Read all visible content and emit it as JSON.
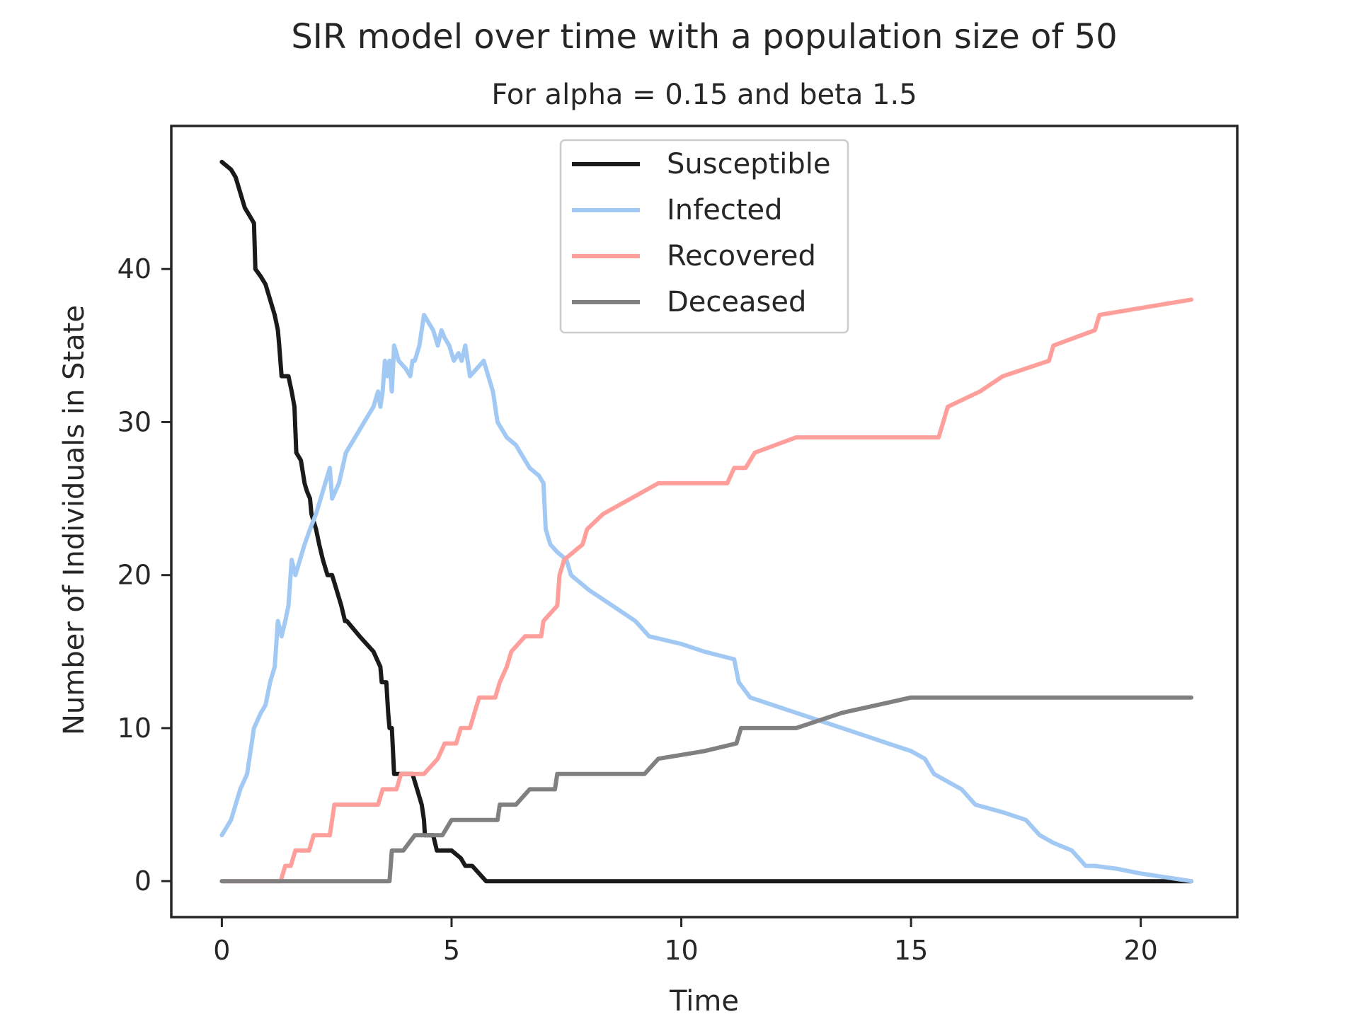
{
  "chart_data": {
    "type": "line",
    "title": "SIR model over time with a population size of 50",
    "subtitle": "For alpha = 0.15 and beta 1.5",
    "xlabel": "Time",
    "ylabel": "Number of Individuals in State",
    "xlim": [
      -1.1,
      22.1
    ],
    "ylim": [
      -2.35,
      49.35
    ],
    "xticks": [
      0,
      5,
      10,
      15,
      20
    ],
    "yticks": [
      0,
      10,
      20,
      30,
      40
    ],
    "grid": false,
    "legend_position": "upper center",
    "series": [
      {
        "name": "Susceptible",
        "color": "#1a1a1a",
        "points": [
          [
            0,
            47
          ],
          [
            0.2,
            46.5
          ],
          [
            0.3,
            46
          ],
          [
            0.4,
            45
          ],
          [
            0.5,
            44
          ],
          [
            0.6,
            43.5
          ],
          [
            0.7,
            43
          ],
          [
            0.73,
            40
          ],
          [
            0.85,
            39.5
          ],
          [
            0.95,
            39
          ],
          [
            1.05,
            38
          ],
          [
            1.15,
            37
          ],
          [
            1.22,
            36
          ],
          [
            1.25,
            35
          ],
          [
            1.3,
            33
          ],
          [
            1.45,
            33
          ],
          [
            1.52,
            32
          ],
          [
            1.58,
            31
          ],
          [
            1.62,
            28
          ],
          [
            1.72,
            27.5
          ],
          [
            1.8,
            26
          ],
          [
            1.85,
            25.5
          ],
          [
            1.92,
            25
          ],
          [
            1.95,
            24
          ],
          [
            2.05,
            23
          ],
          [
            2.12,
            22
          ],
          [
            2.2,
            21
          ],
          [
            2.3,
            20
          ],
          [
            2.4,
            20
          ],
          [
            2.5,
            19
          ],
          [
            2.6,
            18
          ],
          [
            2.68,
            17
          ],
          [
            2.72,
            17
          ],
          [
            3.0,
            16
          ],
          [
            3.3,
            15
          ],
          [
            3.45,
            14
          ],
          [
            3.48,
            13
          ],
          [
            3.58,
            13
          ],
          [
            3.62,
            11
          ],
          [
            3.65,
            10
          ],
          [
            3.7,
            10
          ],
          [
            3.75,
            7
          ],
          [
            4.0,
            7
          ],
          [
            4.1,
            7
          ],
          [
            4.15,
            7
          ],
          [
            4.25,
            6
          ],
          [
            4.35,
            5
          ],
          [
            4.4,
            4
          ],
          [
            4.42,
            3
          ],
          [
            4.6,
            3
          ],
          [
            4.68,
            2
          ],
          [
            5.0,
            2
          ],
          [
            5.2,
            1.5
          ],
          [
            5.3,
            1
          ],
          [
            5.45,
            1
          ],
          [
            5.6,
            0.5
          ],
          [
            5.75,
            0
          ],
          [
            21.1,
            0
          ]
        ]
      },
      {
        "name": "Infected",
        "color": "#a1c9f4",
        "points": [
          [
            0,
            3
          ],
          [
            0.2,
            4
          ],
          [
            0.3,
            5
          ],
          [
            0.4,
            6
          ],
          [
            0.55,
            7
          ],
          [
            0.7,
            10
          ],
          [
            0.85,
            11
          ],
          [
            0.95,
            11.5
          ],
          [
            1.05,
            13
          ],
          [
            1.15,
            14
          ],
          [
            1.22,
            17
          ],
          [
            1.3,
            16
          ],
          [
            1.38,
            17
          ],
          [
            1.45,
            18
          ],
          [
            1.52,
            21
          ],
          [
            1.6,
            20
          ],
          [
            1.7,
            21
          ],
          [
            1.8,
            22
          ],
          [
            1.92,
            23
          ],
          [
            2.05,
            24
          ],
          [
            2.15,
            25
          ],
          [
            2.25,
            26
          ],
          [
            2.35,
            27
          ],
          [
            2.4,
            25
          ],
          [
            2.55,
            26
          ],
          [
            2.7,
            28
          ],
          [
            2.9,
            29
          ],
          [
            3.1,
            30
          ],
          [
            3.3,
            31
          ],
          [
            3.4,
            32
          ],
          [
            3.45,
            31
          ],
          [
            3.5,
            32
          ],
          [
            3.55,
            34
          ],
          [
            3.6,
            33
          ],
          [
            3.65,
            34
          ],
          [
            3.7,
            32
          ],
          [
            3.75,
            35
          ],
          [
            3.85,
            34
          ],
          [
            4.0,
            33.5
          ],
          [
            4.1,
            33
          ],
          [
            4.15,
            34
          ],
          [
            4.2,
            34
          ],
          [
            4.3,
            35
          ],
          [
            4.4,
            37
          ],
          [
            4.5,
            36.5
          ],
          [
            4.6,
            36
          ],
          [
            4.7,
            35
          ],
          [
            4.78,
            36
          ],
          [
            4.85,
            35.5
          ],
          [
            4.95,
            35
          ],
          [
            5.05,
            34
          ],
          [
            5.15,
            34.5
          ],
          [
            5.22,
            34
          ],
          [
            5.3,
            35
          ],
          [
            5.4,
            33
          ],
          [
            5.55,
            33.5
          ],
          [
            5.7,
            34
          ],
          [
            5.8,
            33
          ],
          [
            5.9,
            32
          ],
          [
            6.0,
            30
          ],
          [
            6.2,
            29
          ],
          [
            6.4,
            28.5
          ],
          [
            6.5,
            28
          ],
          [
            6.7,
            27
          ],
          [
            6.9,
            26.5
          ],
          [
            7.0,
            26
          ],
          [
            7.05,
            23
          ],
          [
            7.15,
            22
          ],
          [
            7.3,
            21.5
          ],
          [
            7.5,
            21
          ],
          [
            7.6,
            20
          ],
          [
            8.0,
            19
          ],
          [
            8.5,
            18
          ],
          [
            9.0,
            17
          ],
          [
            9.3,
            16
          ],
          [
            10.0,
            15.5
          ],
          [
            10.5,
            15
          ],
          [
            11.15,
            14.5
          ],
          [
            11.25,
            13
          ],
          [
            11.5,
            12
          ],
          [
            12.0,
            11.5
          ],
          [
            12.5,
            11
          ],
          [
            13.0,
            10.5
          ],
          [
            13.5,
            10
          ],
          [
            14.0,
            9.5
          ],
          [
            14.5,
            9
          ],
          [
            15.0,
            8.5
          ],
          [
            15.3,
            8
          ],
          [
            15.5,
            7
          ],
          [
            15.8,
            6.5
          ],
          [
            16.1,
            6
          ],
          [
            16.4,
            5
          ],
          [
            17.0,
            4.5
          ],
          [
            17.5,
            4
          ],
          [
            17.8,
            3
          ],
          [
            18.1,
            2.5
          ],
          [
            18.5,
            2
          ],
          [
            18.8,
            1
          ],
          [
            19.0,
            1
          ],
          [
            19.5,
            0.8
          ],
          [
            20.0,
            0.5
          ],
          [
            21.1,
            0
          ]
        ]
      },
      {
        "name": "Recovered",
        "color": "#ff9f9b",
        "points": [
          [
            0,
            0
          ],
          [
            1.0,
            0
          ],
          [
            1.28,
            0
          ],
          [
            1.38,
            1
          ],
          [
            1.5,
            1
          ],
          [
            1.6,
            2
          ],
          [
            1.9,
            2
          ],
          [
            2.0,
            3
          ],
          [
            2.35,
            3
          ],
          [
            2.45,
            5
          ],
          [
            3.1,
            5
          ],
          [
            3.4,
            5
          ],
          [
            3.5,
            6
          ],
          [
            3.8,
            6
          ],
          [
            3.9,
            7
          ],
          [
            4.1,
            7
          ],
          [
            4.4,
            7
          ],
          [
            4.7,
            8
          ],
          [
            4.85,
            9
          ],
          [
            5.1,
            9
          ],
          [
            5.2,
            10
          ],
          [
            5.4,
            10
          ],
          [
            5.5,
            11
          ],
          [
            5.6,
            12
          ],
          [
            5.95,
            12
          ],
          [
            6.05,
            13
          ],
          [
            6.2,
            14
          ],
          [
            6.3,
            15
          ],
          [
            6.6,
            16
          ],
          [
            6.95,
            16
          ],
          [
            7.0,
            17
          ],
          [
            7.3,
            18
          ],
          [
            7.35,
            20
          ],
          [
            7.45,
            21
          ],
          [
            7.85,
            22
          ],
          [
            7.95,
            23
          ],
          [
            8.3,
            24
          ],
          [
            8.9,
            25
          ],
          [
            9.5,
            26
          ],
          [
            11.0,
            26
          ],
          [
            11.15,
            27
          ],
          [
            11.4,
            27
          ],
          [
            11.6,
            28
          ],
          [
            12.5,
            29
          ],
          [
            15.6,
            29
          ],
          [
            15.7,
            30
          ],
          [
            15.8,
            31
          ],
          [
            16.5,
            32
          ],
          [
            17.0,
            33
          ],
          [
            18.0,
            34
          ],
          [
            18.1,
            35
          ],
          [
            19.0,
            36
          ],
          [
            19.1,
            37
          ],
          [
            21.1,
            38
          ]
        ]
      },
      {
        "name": "Deceased",
        "color": "#808080",
        "points": [
          [
            0,
            0
          ],
          [
            3.65,
            0
          ],
          [
            3.7,
            2
          ],
          [
            3.95,
            2
          ],
          [
            4.2,
            3
          ],
          [
            4.8,
            3
          ],
          [
            5.0,
            4
          ],
          [
            6.0,
            4
          ],
          [
            6.05,
            5
          ],
          [
            6.4,
            5
          ],
          [
            6.7,
            6
          ],
          [
            7.25,
            6
          ],
          [
            7.3,
            7
          ],
          [
            9.2,
            7
          ],
          [
            9.5,
            8
          ],
          [
            10.5,
            8.5
          ],
          [
            11.2,
            9
          ],
          [
            11.3,
            10
          ],
          [
            12.5,
            10
          ],
          [
            13.5,
            11
          ],
          [
            15.0,
            12
          ],
          [
            21.1,
            12
          ]
        ]
      }
    ]
  }
}
